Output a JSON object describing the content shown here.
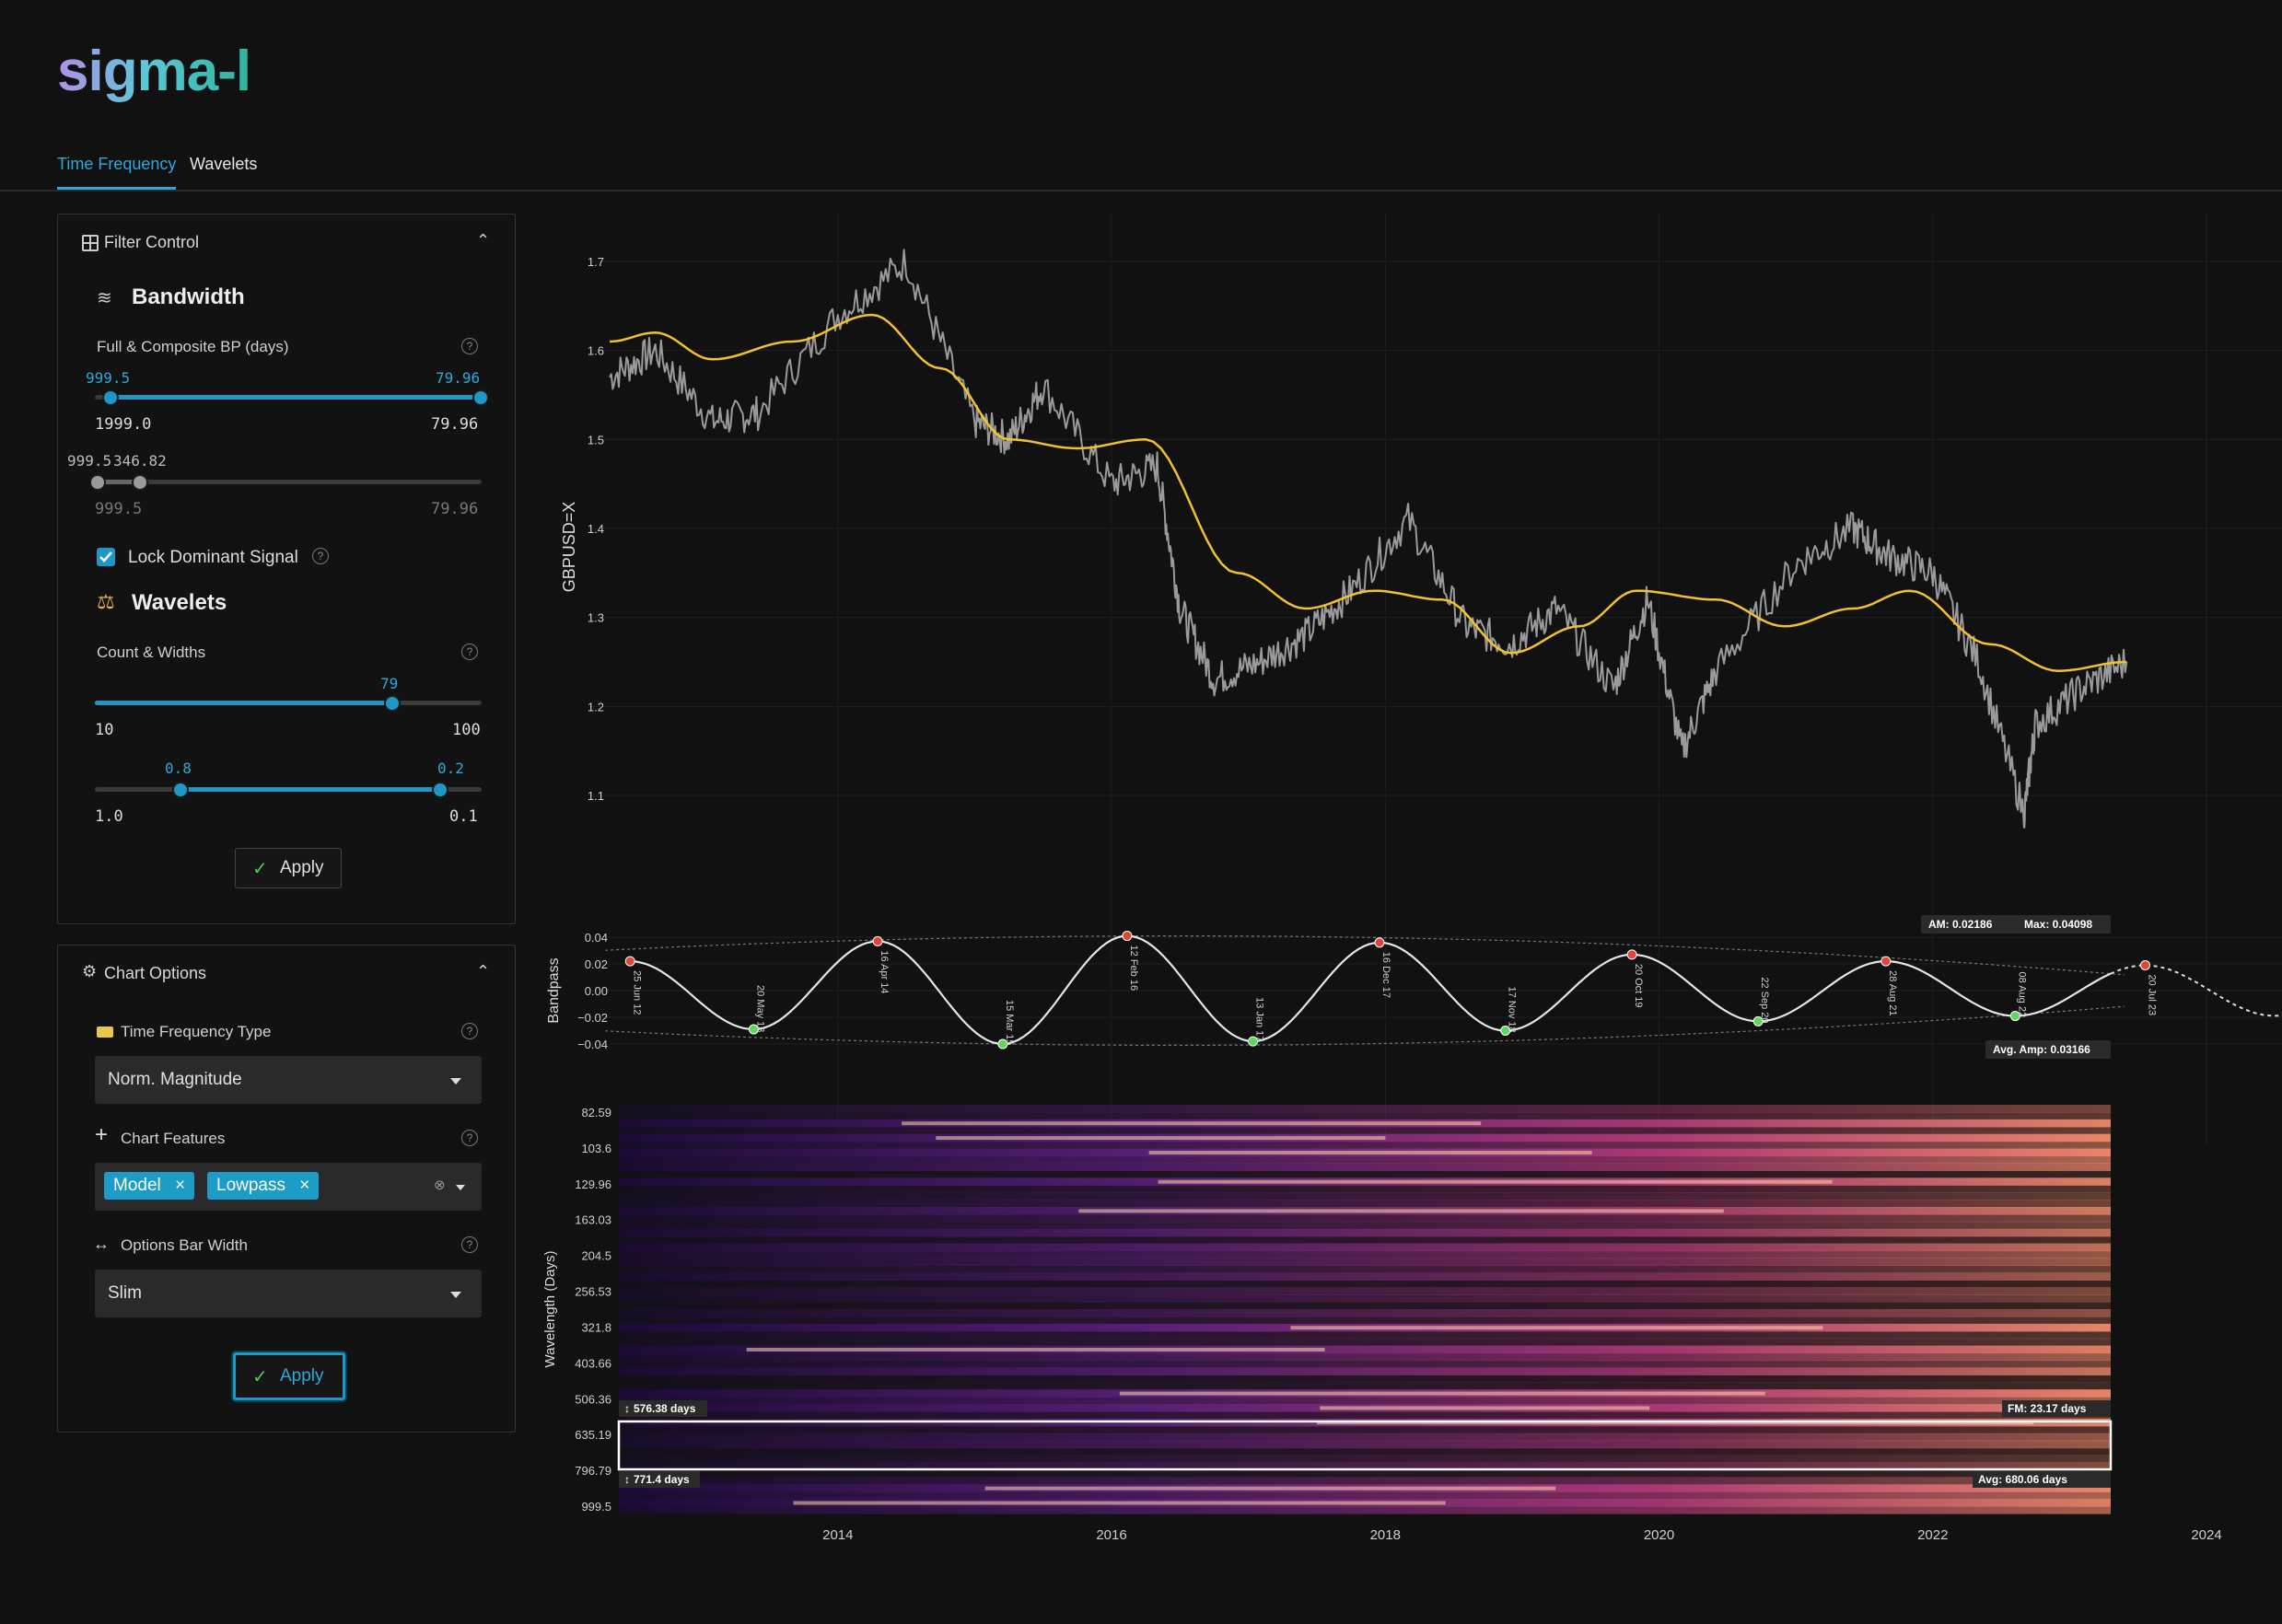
{
  "app": {
    "logo": "sigma-l"
  },
  "tabs": [
    {
      "label": "Time Frequency",
      "active": true
    },
    {
      "label": "Wavelets",
      "active": false
    }
  ],
  "filter_control": {
    "title": "Filter Control",
    "bandwidth_heading": "Bandwidth",
    "bp_label": "Full & Composite BP (days)",
    "slider1": {
      "left_value": "999.5",
      "right_value": "79.96",
      "min_label": "1999.0",
      "max_label": "79.96"
    },
    "slider2": {
      "left_value": "999.5",
      "right_value": "346.82",
      "min_label": "999.5",
      "max_label": "79.96"
    },
    "lock_label": "Lock Dominant Signal",
    "lock_checked": true,
    "wavelets_heading": "Wavelets",
    "count_label": "Count & Widths",
    "count_slider": {
      "value": "79",
      "min_label": "10",
      "max_label": "100"
    },
    "width_slider": {
      "left_value": "0.8",
      "right_value": "0.2",
      "min_label": "1.0",
      "max_label": "0.1"
    },
    "apply_label": "Apply"
  },
  "chart_options": {
    "title": "Chart Options",
    "tf_type_label": "Time Frequency Type",
    "tf_type_value": "Norm. Magnitude",
    "features_label": "Chart Features",
    "features": [
      "Model",
      "Lowpass"
    ],
    "bar_width_label": "Options Bar Width",
    "bar_width_value": "Slim",
    "apply_label": "Apply"
  },
  "price_chart": {
    "ylabel": "GBPUSD=X",
    "yticks": [
      "1.7",
      "1.6",
      "1.5",
      "1.4",
      "1.3",
      "1.2",
      "1.1"
    ]
  },
  "bandpass_chart": {
    "ylabel": "Bandpass",
    "yticks": [
      "0.04",
      "0.02",
      "0.00",
      "−0.02",
      "−0.04"
    ],
    "peaks": [
      "25 Jun 12",
      "16 Apr 14",
      "12 Feb 16",
      "16 Dec 17",
      "20 Oct 19",
      "28 Aug 21",
      "20 Jul 23"
    ],
    "troughs": [
      "20 May 13",
      "15 Mar 15",
      "13 Jan 17",
      "17 Nov 18",
      "22 Sep 20",
      "08 Aug 22"
    ],
    "am_text": "AM: 0.02186",
    "max_text": "Max: 0.04098",
    "avg_amp_text": "Avg. Amp: 0.03166"
  },
  "heatmap": {
    "ylabel": "Wavelength (Days)",
    "yticks": [
      "82.59",
      "103.6",
      "129.96",
      "163.03",
      "204.5",
      "256.53",
      "321.8",
      "403.66",
      "506.36",
      "635.19",
      "796.79",
      "999.5"
    ],
    "upper_box_label": "576.38 days",
    "lower_box_label": "771.4 days",
    "fm_text": "FM: 23.17 days",
    "avg_text": "Avg: 680.06 days"
  },
  "x_axis": {
    "ticks": [
      "2014",
      "2016",
      "2018",
      "2020",
      "2022",
      "2024"
    ]
  },
  "colors": {
    "accent": "#1f97c6",
    "lowpass": "#f2c12e",
    "price": "#9a9a9a",
    "peak": "#e0453a",
    "trough": "#5bd95b"
  },
  "chart_data": [
    {
      "type": "line",
      "ylabel": "GBPUSD=X",
      "ylim": [
        1.05,
        1.72
      ],
      "x_range": [
        "2012-04",
        "2024-06"
      ],
      "series": [
        {
          "name": "Price",
          "x": [
            "2012-05",
            "2012-09",
            "2013-02",
            "2013-06",
            "2014-01",
            "2014-07",
            "2015-01",
            "2015-04",
            "2015-07",
            "2016-01",
            "2016-05",
            "2016-07",
            "2016-10",
            "2017-02",
            "2017-06",
            "2017-10",
            "2018-03",
            "2018-08",
            "2018-12",
            "2019-04",
            "2019-09",
            "2019-12",
            "2020-03",
            "2020-06",
            "2021-01",
            "2021-06",
            "2021-09",
            "2022-01",
            "2022-05",
            "2022-09",
            "2022-10",
            "2023-02",
            "2023-06"
          ],
          "y": [
            1.57,
            1.6,
            1.52,
            1.53,
            1.64,
            1.7,
            1.52,
            1.5,
            1.56,
            1.45,
            1.47,
            1.31,
            1.23,
            1.25,
            1.28,
            1.33,
            1.41,
            1.29,
            1.27,
            1.31,
            1.22,
            1.32,
            1.15,
            1.24,
            1.36,
            1.4,
            1.37,
            1.35,
            1.25,
            1.08,
            1.18,
            1.22,
            1.25
          ]
        },
        {
          "name": "Lowpass",
          "x": [
            "2012-05",
            "2012-09",
            "2013-02",
            "2013-09",
            "2014-04",
            "2014-10",
            "2015-04",
            "2015-10",
            "2016-04",
            "2016-12",
            "2017-06",
            "2017-12",
            "2018-06",
            "2018-12",
            "2019-06",
            "2019-11",
            "2020-06",
            "2020-12",
            "2021-06",
            "2021-11",
            "2022-06",
            "2022-12",
            "2023-06"
          ],
          "y": [
            1.61,
            1.62,
            1.59,
            1.61,
            1.64,
            1.58,
            1.5,
            1.49,
            1.5,
            1.35,
            1.31,
            1.33,
            1.32,
            1.26,
            1.29,
            1.33,
            1.32,
            1.29,
            1.31,
            1.33,
            1.27,
            1.24,
            1.25
          ]
        }
      ]
    },
    {
      "type": "line",
      "ylabel": "Bandpass",
      "ylim": [
        -0.042,
        0.042
      ],
      "series": [
        {
          "name": "Bandpass",
          "x": [
            "2012-06-25",
            "2013-05-20",
            "2014-04-16",
            "2015-03-15",
            "2016-02-12",
            "2017-01-13",
            "2017-12-16",
            "2018-11-17",
            "2019-10-20",
            "2020-09-22",
            "2021-08-28",
            "2022-08-08",
            "2023-07-20"
          ],
          "y": [
            0.022,
            -0.029,
            0.037,
            -0.04,
            0.041,
            -0.038,
            0.036,
            -0.03,
            0.027,
            -0.023,
            0.022,
            -0.019,
            0.019
          ]
        }
      ]
    }
  ]
}
